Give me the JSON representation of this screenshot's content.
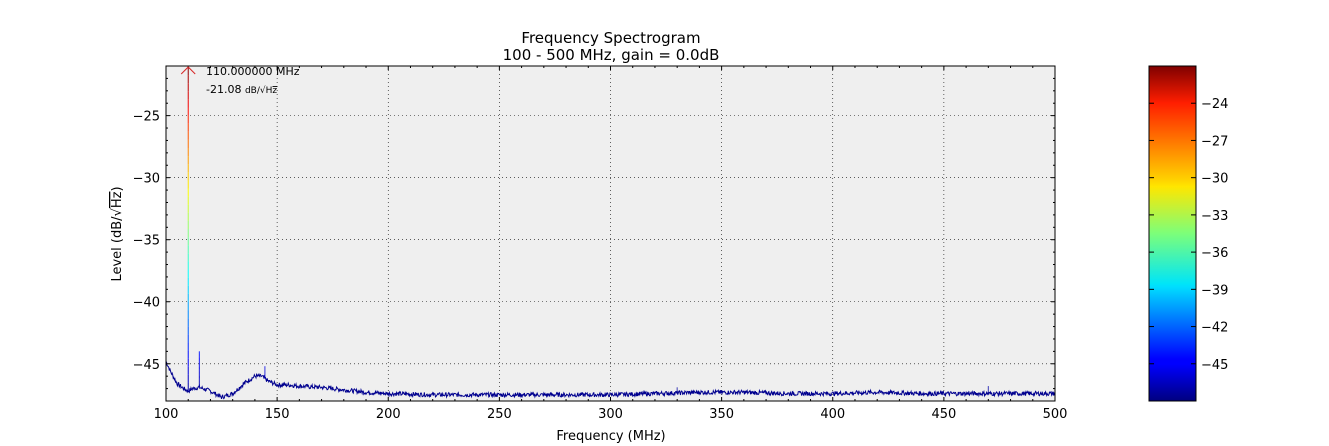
{
  "chart_data": {
    "type": "line",
    "title": "Frequency Spectrogram",
    "subtitle": "100 - 500 MHz, gain = 0.0dB",
    "xlabel": "Frequency (MHz)",
    "ylabel_prefix": "Level (dB/",
    "ylabel_sqrt": "√",
    "ylabel_unit": "Hz",
    "ylabel_suffix": ")",
    "xlim": [
      100,
      500
    ],
    "ylim": [
      -48,
      -21
    ],
    "xticks": [
      100,
      150,
      200,
      250,
      300,
      350,
      400,
      450,
      500
    ],
    "yticks": [
      -45,
      -40,
      -35,
      -30,
      -25
    ],
    "grid": true,
    "background": "#efefef",
    "series_color": "#00008f",
    "noise_floor": {
      "x": [
        100,
        102,
        105,
        108,
        110,
        112,
        115,
        120,
        125,
        130,
        135,
        140,
        143,
        146,
        150,
        155,
        160,
        170,
        180,
        190,
        200,
        220,
        250,
        280,
        300,
        320,
        340,
        360,
        380,
        400,
        420,
        440,
        460,
        480,
        500
      ],
      "y": [
        -44.8,
        -45.6,
        -46.6,
        -47.0,
        -47.2,
        -47.0,
        -46.9,
        -47.2,
        -47.7,
        -47.4,
        -46.6,
        -46.0,
        -46.0,
        -46.4,
        -46.7,
        -46.7,
        -46.8,
        -46.9,
        -47.1,
        -47.3,
        -47.4,
        -47.5,
        -47.5,
        -47.5,
        -47.5,
        -47.4,
        -47.3,
        -47.3,
        -47.4,
        -47.4,
        -47.3,
        -47.4,
        -47.4,
        -47.4,
        -47.4
      ]
    },
    "spikes": [
      {
        "x": 110,
        "y": -21.08
      },
      {
        "x": 115,
        "y": -44.0
      },
      {
        "x": 144.5,
        "y": -45.2
      },
      {
        "x": 330,
        "y": -46.9
      },
      {
        "x": 470,
        "y": -46.8
      }
    ],
    "peak_marker": {
      "x": 110,
      "y": -21.08,
      "freq_label": "110.000000 MHz",
      "level_label_value": "-21.08",
      "level_label_unit_prefix": "dB/",
      "level_label_sqrt": "√",
      "level_label_unit": "Hz"
    },
    "colorbar": {
      "colormap": "jet",
      "range": [
        -48,
        -21
      ],
      "ticks": [
        -24,
        -27,
        -30,
        -33,
        -36,
        -39,
        -42,
        -45
      ],
      "tick_labels": [
        "−24",
        "−27",
        "−30",
        "−33",
        "−36",
        "−39",
        "−42",
        "−45"
      ]
    },
    "ytick_labels": [
      "−45",
      "−40",
      "−35",
      "−30",
      "−25"
    ],
    "xtick_labels": [
      "100",
      "150",
      "200",
      "250",
      "300",
      "350",
      "400",
      "450",
      "500"
    ]
  }
}
